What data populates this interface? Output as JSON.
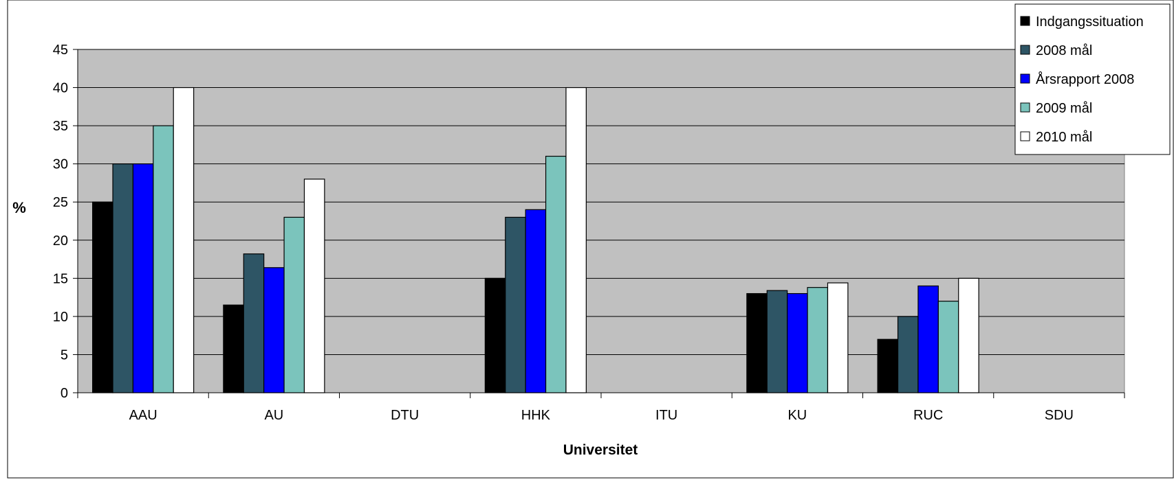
{
  "chart_data": {
    "type": "bar",
    "title": "",
    "xlabel": "Universitet",
    "ylabel": "%",
    "ylim": [
      0,
      45
    ],
    "yticks": [
      0,
      5,
      10,
      15,
      20,
      25,
      30,
      35,
      40,
      45
    ],
    "grid": true,
    "legend_position": "top-right",
    "categories": [
      "AAU",
      "AU",
      "DTU",
      "HHK",
      "ITU",
      "KU",
      "RUC",
      "SDU"
    ],
    "series": [
      {
        "name": "Indgangssituation",
        "color": "#000000",
        "values": [
          25,
          11.5,
          null,
          15,
          null,
          13,
          7,
          null
        ]
      },
      {
        "name": "2008 mål",
        "color": "#2e5565",
        "values": [
          30,
          18.2,
          null,
          23,
          null,
          13.4,
          10,
          null
        ]
      },
      {
        "name": "Årsrapport 2008",
        "color": "#0000ff",
        "values": [
          30,
          16.4,
          null,
          24,
          null,
          13,
          14,
          null
        ]
      },
      {
        "name": "2009 mål",
        "color": "#7bc4bc",
        "values": [
          35,
          23,
          null,
          31,
          null,
          13.8,
          12,
          null
        ]
      },
      {
        "name": "2010 mål",
        "color": "#ffffff",
        "values": [
          40,
          28,
          null,
          40,
          null,
          14.4,
          15,
          null
        ]
      }
    ],
    "colors": {
      "plot_background": "#c0c0c0",
      "gridline": "#000000",
      "bar_outline": "#000000"
    }
  }
}
